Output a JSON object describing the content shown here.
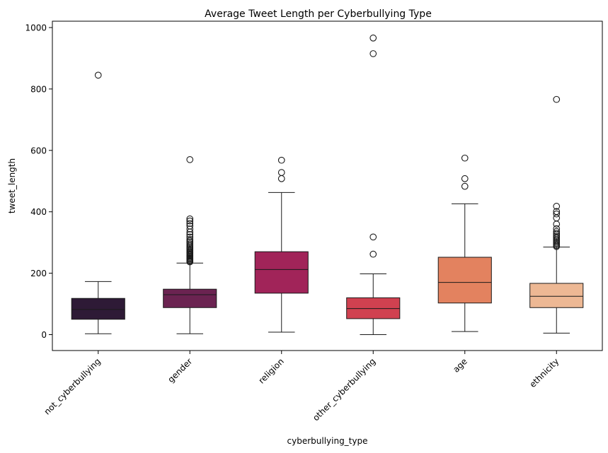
{
  "chart_data": {
    "type": "box",
    "title": "Average Tweet Length per Cyberbullying Type",
    "xlabel": "cyberbullying_type",
    "ylabel": "tweet_length",
    "ylim": [
      -50,
      1030
    ],
    "yticks": [
      0,
      200,
      400,
      600,
      800,
      1000
    ],
    "grid": false,
    "categories": [
      "not_cyberbullying",
      "gender",
      "religion",
      "other_cyberbullying",
      "age",
      "ethnicity"
    ],
    "colors": [
      "#2e1a36",
      "#6b2351",
      "#a12459",
      "#d04150",
      "#e3825f",
      "#edb894"
    ],
    "boxes": [
      {
        "whisker_low": 3,
        "q1": 50,
        "median": 82,
        "q3": 118,
        "whisker_high": 173,
        "outliers": [
          845
        ]
      },
      {
        "whisker_low": 3,
        "q1": 88,
        "median": 130,
        "q3": 148,
        "whisker_high": 233,
        "outliers": [
          237,
          240,
          243,
          246,
          249,
          252,
          255,
          258,
          261,
          264,
          267,
          270,
          274,
          278,
          282,
          286,
          290,
          295,
          300,
          305,
          310,
          318,
          326,
          334,
          344,
          354,
          362,
          370,
          377,
          570
        ]
      },
      {
        "whisker_low": 8,
        "q1": 135,
        "median": 212,
        "q3": 270,
        "whisker_high": 463,
        "outliers": [
          508,
          528,
          568
        ]
      },
      {
        "whisker_low": 0,
        "q1": 52,
        "median": 85,
        "q3": 120,
        "whisker_high": 198,
        "outliers": [
          262,
          318,
          915,
          966
        ]
      },
      {
        "whisker_low": 10,
        "q1": 103,
        "median": 170,
        "q3": 252,
        "whisker_high": 426,
        "outliers": [
          483,
          508,
          575
        ]
      },
      {
        "whisker_low": 5,
        "q1": 88,
        "median": 125,
        "q3": 167,
        "whisker_high": 285,
        "outliers": [
          287,
          290,
          294,
          298,
          302,
          306,
          310,
          315,
          320,
          325,
          330,
          336,
          345,
          360,
          380,
          393,
          401,
          418,
          766
        ]
      }
    ]
  }
}
